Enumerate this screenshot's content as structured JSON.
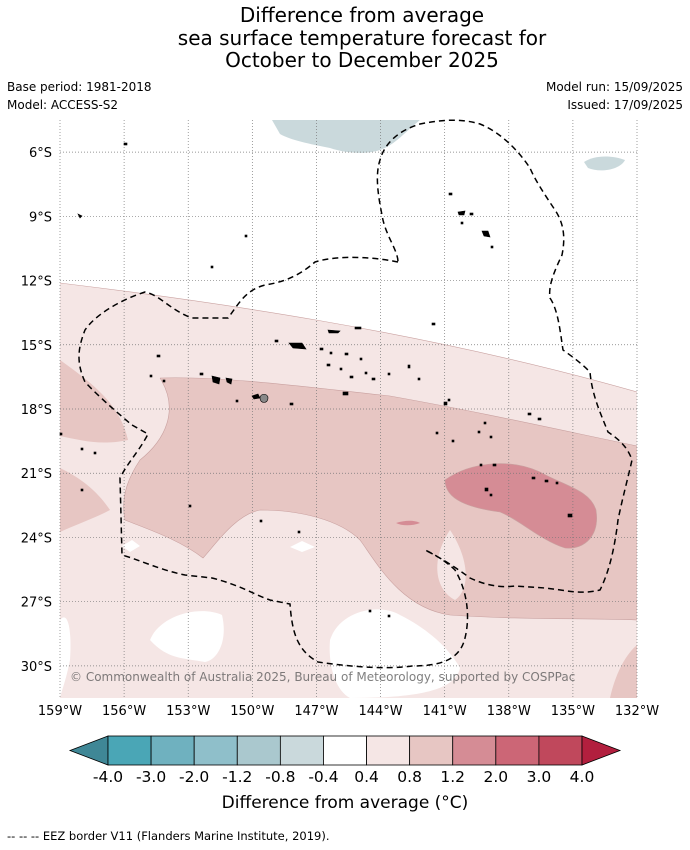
{
  "title": {
    "line1": "Difference from average",
    "line2": "sea surface temperature forecast for",
    "line3": "October to December 2025"
  },
  "meta": {
    "base_period": "Base period: 1981-2018",
    "model": "Model: ACCESS-S2",
    "model_run": "Model run: 15/09/2025",
    "issued": "Issued: 17/09/2025"
  },
  "map": {
    "lat_labels": [
      "6°S",
      "9°S",
      "12°S",
      "15°S",
      "18°S",
      "21°S",
      "24°S",
      "27°S",
      "30°S"
    ],
    "lat_values": [
      -6,
      -9,
      -12,
      -15,
      -18,
      -21,
      -24,
      -27,
      -30
    ],
    "lon_labels": [
      "159°W",
      "156°W",
      "153°W",
      "150°W",
      "147°W",
      "144°W",
      "141°W",
      "138°W",
      "135°W",
      "132°W"
    ],
    "lon_values": [
      -159,
      -156,
      -153,
      -150,
      -147,
      -144,
      -141,
      -138,
      -135,
      -132
    ],
    "extent": {
      "lon_min": -159.0,
      "lon_max": -132.0,
      "lat_max": -4.5,
      "lat_min": -31.5
    },
    "copyright": "© Commonwealth of Australia 2025, Bureau of Meteorology, supported by COSPPac",
    "grid": true,
    "eez_border_style": "dashed"
  },
  "colorbar": {
    "tick_labels": [
      "-4.0",
      "-3.0",
      "-2.0",
      "-1.2",
      "-0.8",
      "-0.4",
      "0.4",
      "0.8",
      "1.2",
      "2.0",
      "3.0",
      "4.0"
    ],
    "colors": [
      "#3f8796",
      "#4aa6b6",
      "#6fb1bf",
      "#8fbfca",
      "#aac8ce",
      "#cad9dc",
      "#ffffff",
      "#f5e6e5",
      "#e7c6c3",
      "#d58c95",
      "#cc6676",
      "#c0485c",
      "#b21f3e"
    ],
    "title": "Difference from average ($^{\\circ}$C)",
    "title_display": "Difference from average (°C)"
  },
  "footer": "--  --  -- EEZ border V11 (Flanders Marine Institute, 2019)."
}
